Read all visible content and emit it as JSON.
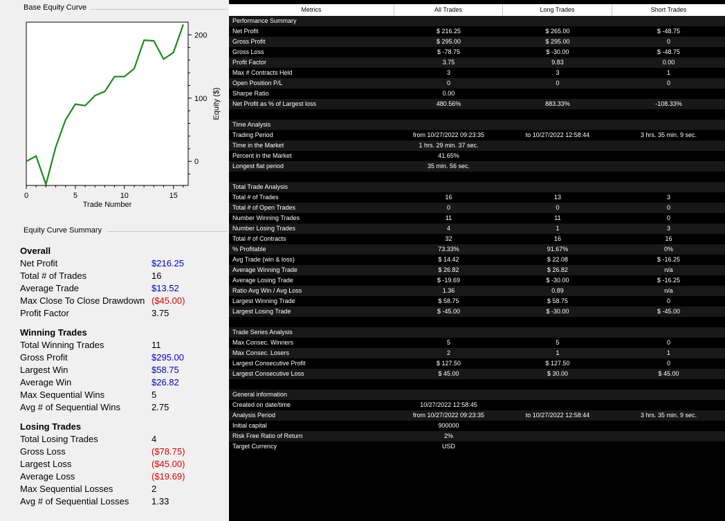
{
  "left_panel": {
    "chart_group_label": "Base Equity Curve",
    "summary_group_label": "Equity Curve Summary"
  },
  "chart_data": {
    "type": "line",
    "x": [
      0,
      1,
      2,
      3,
      4,
      5,
      6,
      7,
      8,
      9,
      10,
      11,
      12,
      13,
      14,
      15,
      16
    ],
    "series": [
      {
        "values": [
          0,
          8.5,
          -36.5,
          22.25,
          65.5,
          90.5,
          88,
          104,
          110.5,
          134,
          134,
          146.5,
          191.5,
          190.5,
          161.5,
          172,
          216.25
        ],
        "color": "#1a8a1a"
      }
    ],
    "xlabel": "Trade Number",
    "ylabel": "Equity ($)",
    "xlim": [
      0,
      16.5
    ],
    "ylim": [
      -38,
      220
    ],
    "x_ticks": [
      0,
      5,
      10,
      15
    ],
    "y_ticks": [
      0,
      100,
      200
    ],
    "grid": false,
    "y_axis_side": "right"
  },
  "summary": {
    "sections": [
      {
        "title": "Overall",
        "rows": [
          {
            "label": "Net Profit",
            "value": "$216.25",
            "color": "#0000cc"
          },
          {
            "label": "Total # of Trades",
            "value": "16",
            "color": "#000000"
          },
          {
            "label": "Average Trade",
            "value": "$13.52",
            "color": "#0000cc"
          },
          {
            "label": "Max Close To Close Drawdown",
            "value": "($45.00)",
            "color": "#e00000"
          },
          {
            "label": "Profit Factor",
            "value": "3.75",
            "color": "#000000"
          }
        ]
      },
      {
        "title": "Winning Trades",
        "rows": [
          {
            "label": "Total Winning Trades",
            "value": "11",
            "color": "#000000"
          },
          {
            "label": "Gross Profit",
            "value": "$295.00",
            "color": "#0000cc"
          },
          {
            "label": "Largest Win",
            "value": "$58.75",
            "color": "#0000cc"
          },
          {
            "label": "Average Win",
            "value": "$26.82",
            "color": "#0000cc"
          },
          {
            "label": "Max Sequential Wins",
            "value": "5",
            "color": "#000000"
          },
          {
            "label": "Avg # of Sequential Wins",
            "value": "2.75",
            "color": "#000000"
          }
        ]
      },
      {
        "title": "Losing Trades",
        "rows": [
          {
            "label": "Total Losing Trades",
            "value": "4",
            "color": "#000000"
          },
          {
            "label": "Gross Loss",
            "value": "($78.75)",
            "color": "#e00000"
          },
          {
            "label": "Largest Loss",
            "value": "($45.00)",
            "color": "#e00000"
          },
          {
            "label": "Average Loss",
            "value": "($19.69)",
            "color": "#e00000"
          },
          {
            "label": "Max Sequential Losses",
            "value": "2",
            "color": "#000000"
          },
          {
            "label": "Avg # of Sequential Losses",
            "value": "1.33",
            "color": "#000000"
          }
        ]
      }
    ]
  },
  "table": {
    "headers": [
      "Metrics",
      "All Trades",
      "Long Trades",
      "Short Trades"
    ],
    "rows": [
      [
        "Performance Summary",
        "",
        "",
        ""
      ],
      [
        "Net Profit",
        "$ 216.25",
        "$ 265.00",
        "$ -48.75"
      ],
      [
        "Gross Profit",
        "$ 295.00",
        "$ 295.00",
        "0"
      ],
      [
        "Gross Loss",
        "$ -78.75",
        "$ -30.00",
        "$ -48.75"
      ],
      [
        "Profit Factor",
        "3.75",
        "9.83",
        "0.00"
      ],
      [
        "Max # Contracts Held",
        "3",
        "3",
        "1"
      ],
      [
        "Open Position P/L",
        "0",
        "0",
        "0"
      ],
      [
        "Sharpe Ratio",
        "0.00",
        "",
        ""
      ],
      [
        "Net Profit as % of Largest loss",
        "480.56%",
        "883.33%",
        "-108.33%"
      ],
      [
        "",
        "",
        "",
        ""
      ],
      [
        "Time Analysis",
        "",
        "",
        ""
      ],
      [
        "Trading Period",
        "from 10/27/2022 09:23:35",
        "to 10/27/2022 12:58:44",
        "3 hrs. 35 min. 9 sec."
      ],
      [
        "Time in the Market",
        "1 hrs. 29 min. 37 sec.",
        "",
        ""
      ],
      [
        "Percent in the Market",
        "41.65%",
        "",
        ""
      ],
      [
        "Longest flat period",
        "35 min. 56 sec.",
        "",
        ""
      ],
      [
        "",
        "",
        "",
        ""
      ],
      [
        "Total Trade Analysis",
        "",
        "",
        ""
      ],
      [
        "Total # of Trades",
        "16",
        "13",
        "3"
      ],
      [
        "Total # of Open Trades",
        "0",
        "0",
        "0"
      ],
      [
        "Number Winning Trades",
        "11",
        "11",
        "0"
      ],
      [
        "Number Losing Trades",
        "4",
        "1",
        "3"
      ],
      [
        "Total # of Contracts",
        "32",
        "16",
        "16"
      ],
      [
        "% Profitable",
        "73.33%",
        "91.67%",
        "0%"
      ],
      [
        "Avg Trade (win & loss)",
        "$ 14.42",
        "$ 22.08",
        "$ -16.25"
      ],
      [
        "Average Winning Trade",
        "$ 26.82",
        "$ 26.82",
        "n/a"
      ],
      [
        "Average Losing Trade",
        "$ -19.69",
        "$ -30.00",
        "$ -16.25"
      ],
      [
        "Ratio Avg Win / Avg Loss",
        "1.36",
        "0.89",
        "n/a"
      ],
      [
        "Largest Winning Trade",
        "$ 58.75",
        "$ 58.75",
        "0"
      ],
      [
        "Largest Losing Trade",
        "$ -45.00",
        "$ -30.00",
        "$ -45.00"
      ],
      [
        "",
        "",
        "",
        ""
      ],
      [
        "Trade Series Analysis",
        "",
        "",
        ""
      ],
      [
        "Max Consec. Winners",
        "5",
        "5",
        "0"
      ],
      [
        "Max Consec. Losers",
        "2",
        "1",
        "1"
      ],
      [
        "Largest Consecutive Profit",
        "$ 127.50",
        "$ 127.50",
        "0"
      ],
      [
        "Largest Consecutive Loss",
        "$ 45.00",
        "$ 30.00",
        "$ 45.00"
      ],
      [
        "",
        "",
        "",
        ""
      ],
      [
        "General information",
        "",
        "",
        ""
      ],
      [
        "Created on date/time",
        "10/27/2022 12:58:45",
        "",
        ""
      ],
      [
        "Analysis Period",
        "from 10/27/2022 09:23:35",
        "to 10/27/2022 12:58:44",
        "3 hrs. 35 min. 9 sec."
      ],
      [
        "Initial capital",
        "900000",
        "",
        ""
      ],
      [
        "Risk Free Ratio of Return",
        "2%",
        "",
        ""
      ],
      [
        "Target Currency",
        "USD",
        "",
        ""
      ]
    ]
  }
}
